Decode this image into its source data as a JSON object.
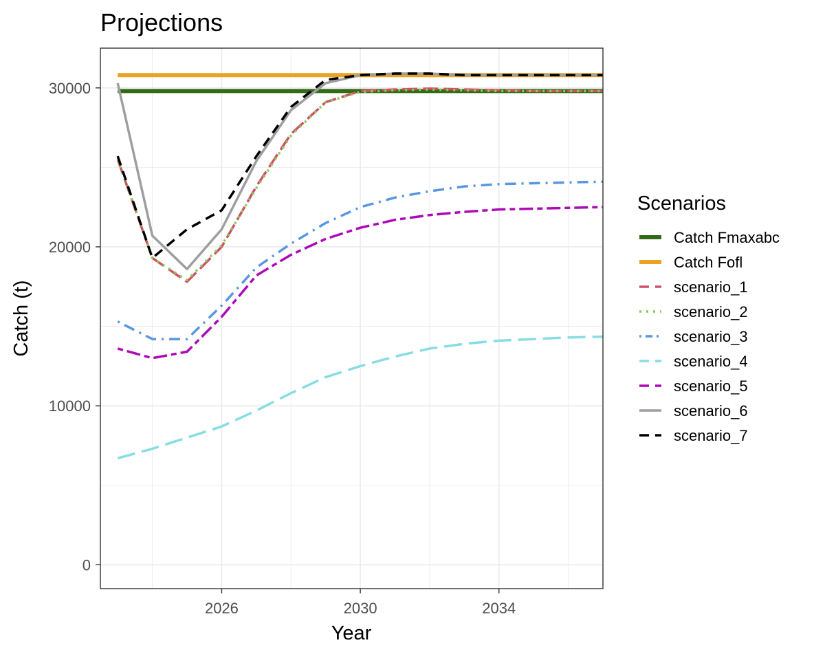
{
  "chart_data": {
    "type": "line",
    "title": "Projections",
    "xlabel": "Year",
    "ylabel": "Catch (t)",
    "xlim": [
      2022.5,
      2037.0
    ],
    "ylim": [
      -1500,
      32500
    ],
    "x_ticks": [
      2026,
      2030,
      2034
    ],
    "y_ticks": [
      0,
      10000,
      20000,
      30000
    ],
    "grid": true,
    "legend": {
      "title": "Scenarios",
      "placement": "right"
    },
    "x": [
      2023,
      2024,
      2025,
      2026,
      2027,
      2028,
      2029,
      2030,
      2031,
      2032,
      2033,
      2034,
      2035,
      2036,
      2037
    ],
    "series": [
      {
        "name": "Catch Fmaxabc",
        "color": "#336a16",
        "dash": "solid",
        "width": 6,
        "values": [
          29800,
          29800,
          29800,
          29800,
          29800,
          29800,
          29800,
          29800,
          29800,
          29800,
          29800,
          29800,
          29800,
          29800,
          29800
        ]
      },
      {
        "name": "Catch Fofl",
        "color": "#e9a323",
        "dash": "solid",
        "width": 6,
        "values": [
          30800,
          30800,
          30800,
          30800,
          30800,
          30800,
          30800,
          30800,
          30800,
          30800,
          30800,
          30800,
          30800,
          30800,
          30800
        ]
      },
      {
        "name": "scenario_1",
        "color": "#cf5068",
        "dash": "longdash",
        "width": 3.5,
        "values": [
          25500,
          19300,
          17800,
          20000,
          23800,
          27100,
          29100,
          29800,
          29900,
          29950,
          29900,
          29850,
          29800,
          29800,
          29800
        ]
      },
      {
        "name": "scenario_2",
        "color": "#84cf52",
        "dash": "dotted",
        "width": 3.5,
        "values": [
          25500,
          19300,
          17900,
          20100,
          23700,
          27000,
          29100,
          29750,
          29850,
          29900,
          29850,
          29800,
          29800,
          29800,
          29800
        ]
      },
      {
        "name": "scenario_3",
        "color": "#5796e1",
        "dash": "dotdash",
        "width": 3.5,
        "values": [
          15300,
          14200,
          14200,
          16300,
          18700,
          20200,
          21500,
          22500,
          23100,
          23500,
          23800,
          23950,
          24000,
          24050,
          24100
        ]
      },
      {
        "name": "scenario_4",
        "color": "#86dde2",
        "dash": "dashed",
        "width": 3.5,
        "values": [
          6700,
          7300,
          8000,
          8700,
          9700,
          10800,
          11800,
          12500,
          13100,
          13600,
          13900,
          14100,
          14200,
          14300,
          14350
        ]
      },
      {
        "name": "scenario_5",
        "color": "#ad09b7",
        "dash": "twodash",
        "width": 3.5,
        "values": [
          13600,
          13000,
          13400,
          15600,
          18200,
          19500,
          20500,
          21200,
          21700,
          22000,
          22200,
          22350,
          22400,
          22450,
          22500
        ]
      },
      {
        "name": "scenario_6",
        "color": "#9e9e9e",
        "dash": "solid",
        "width": 3.5,
        "values": [
          30300,
          20700,
          18600,
          21100,
          25400,
          28600,
          30300,
          30800,
          30900,
          30900,
          30800,
          30800,
          30800,
          30800,
          30800
        ]
      },
      {
        "name": "scenario_7",
        "color": "#000000",
        "dash": "shortdash",
        "width": 3.5,
        "values": [
          25700,
          19300,
          21100,
          22300,
          25700,
          28800,
          30500,
          30800,
          30900,
          30900,
          30800,
          30800,
          30800,
          30800,
          30800
        ]
      }
    ]
  }
}
